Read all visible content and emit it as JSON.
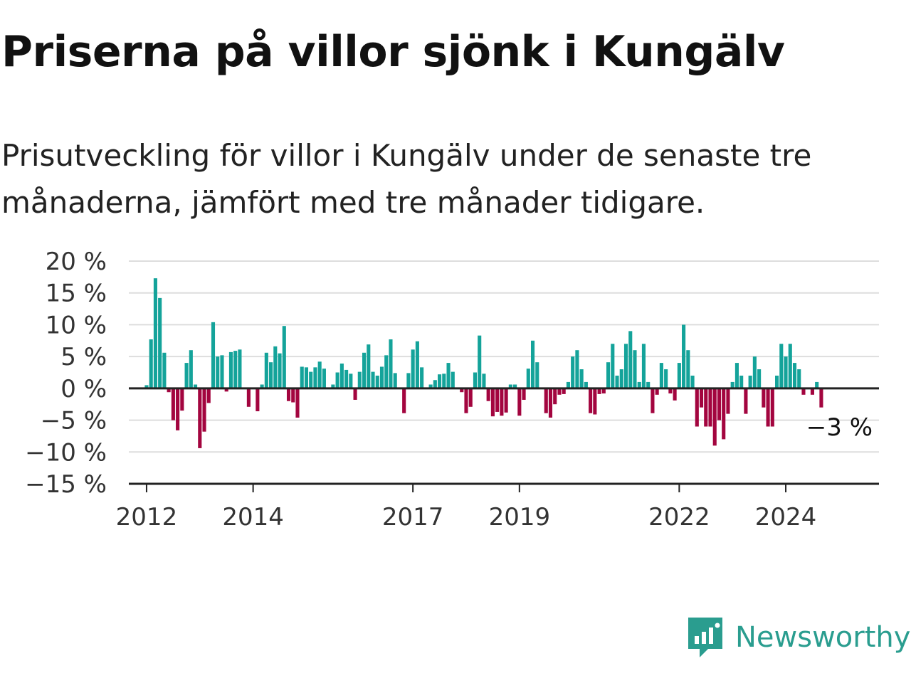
{
  "header": {
    "title": "Priserna på villor sjönk i Kungälv",
    "subtitle": "Prisutveckling för villor i Kungälv under de senaste tre månaderna, jämfört med tre månader tidigare."
  },
  "brand": {
    "name": "Newsworthy",
    "icon": "newsworthy-logo-icon"
  },
  "colors": {
    "positive": "#14a39a",
    "negative": "#a3053f",
    "grid": "#dddddd",
    "axis": "#222222",
    "brand": "#2a9d8f"
  },
  "chart_data": {
    "type": "bar",
    "ylim": [
      -15,
      20
    ],
    "yticks": [
      20,
      15,
      10,
      5,
      0,
      -5,
      -10,
      -15
    ],
    "ytick_labels": [
      "20 %",
      "15 %",
      "10 %",
      "5 %",
      "0 %",
      "−5 %",
      "−10 %",
      "−15 %"
    ],
    "xticks": [
      {
        "label": "2012",
        "date": "2012-01"
      },
      {
        "label": "2014",
        "date": "2014-01"
      },
      {
        "label": "2017",
        "date": "2017-01"
      },
      {
        "label": "2019",
        "date": "2019-01"
      },
      {
        "label": "2022",
        "date": "2022-01"
      },
      {
        "label": "2024",
        "date": "2024-01"
      }
    ],
    "x_start": "2011-09",
    "x_end": "2025-10",
    "annotation": "−3 %",
    "series": [
      {
        "start": "2012-01",
        "values": [
          0.5,
          7.7,
          17.3,
          14.2,
          5.6,
          -0.6,
          -5,
          -6.6,
          -3.5,
          4,
          6,
          0.6,
          -9.4,
          -6.8,
          -2.3,
          10.4,
          5,
          5.2,
          -0.5,
          5.7,
          5.9,
          6.1,
          0,
          -2.9,
          0,
          -3.6,
          0.6,
          5.6,
          4.1,
          6.6,
          5.5,
          9.8,
          -2,
          -2.2,
          -4.6,
          3.4,
          3.3,
          2.6,
          3.3,
          4.2,
          3.1,
          0,
          0.6,
          2.5,
          3.9,
          2.9,
          2.3,
          -1.8,
          2.6,
          5.6,
          6.9,
          2.6,
          2,
          3.4,
          5.2,
          7.7,
          2.4,
          0,
          -3.9,
          2.4,
          6.1,
          7.4,
          3.3,
          0,
          0.6,
          1.3,
          2.2,
          2.3,
          4,
          2.6,
          0,
          -0.6,
          -3.9,
          -2.9,
          2.5,
          8.3,
          2.3,
          -2,
          -4.4,
          -3.7,
          -4.3,
          -3.8,
          0.6,
          0.6,
          -4.3,
          -1.8,
          3.1,
          7.5,
          4.1,
          0,
          -3.9,
          -4.6,
          -2.5,
          -1,
          -0.9,
          1,
          5,
          6,
          3,
          1,
          -3.9,
          -4.1,
          -0.9,
          -0.8,
          4.1,
          7,
          2,
          3,
          7,
          9,
          6,
          1,
          7,
          1,
          -3.9,
          -1,
          4,
          3,
          -0.8,
          -1.9,
          4,
          10,
          6,
          2,
          -6,
          -3,
          -6,
          -6,
          -9,
          -5,
          -8,
          -4,
          1,
          4,
          2,
          -4,
          2,
          5,
          3,
          -3,
          -6,
          -6,
          2,
          7,
          5,
          7,
          4,
          3,
          -1,
          0,
          -1,
          1,
          -3
        ]
      }
    ]
  }
}
